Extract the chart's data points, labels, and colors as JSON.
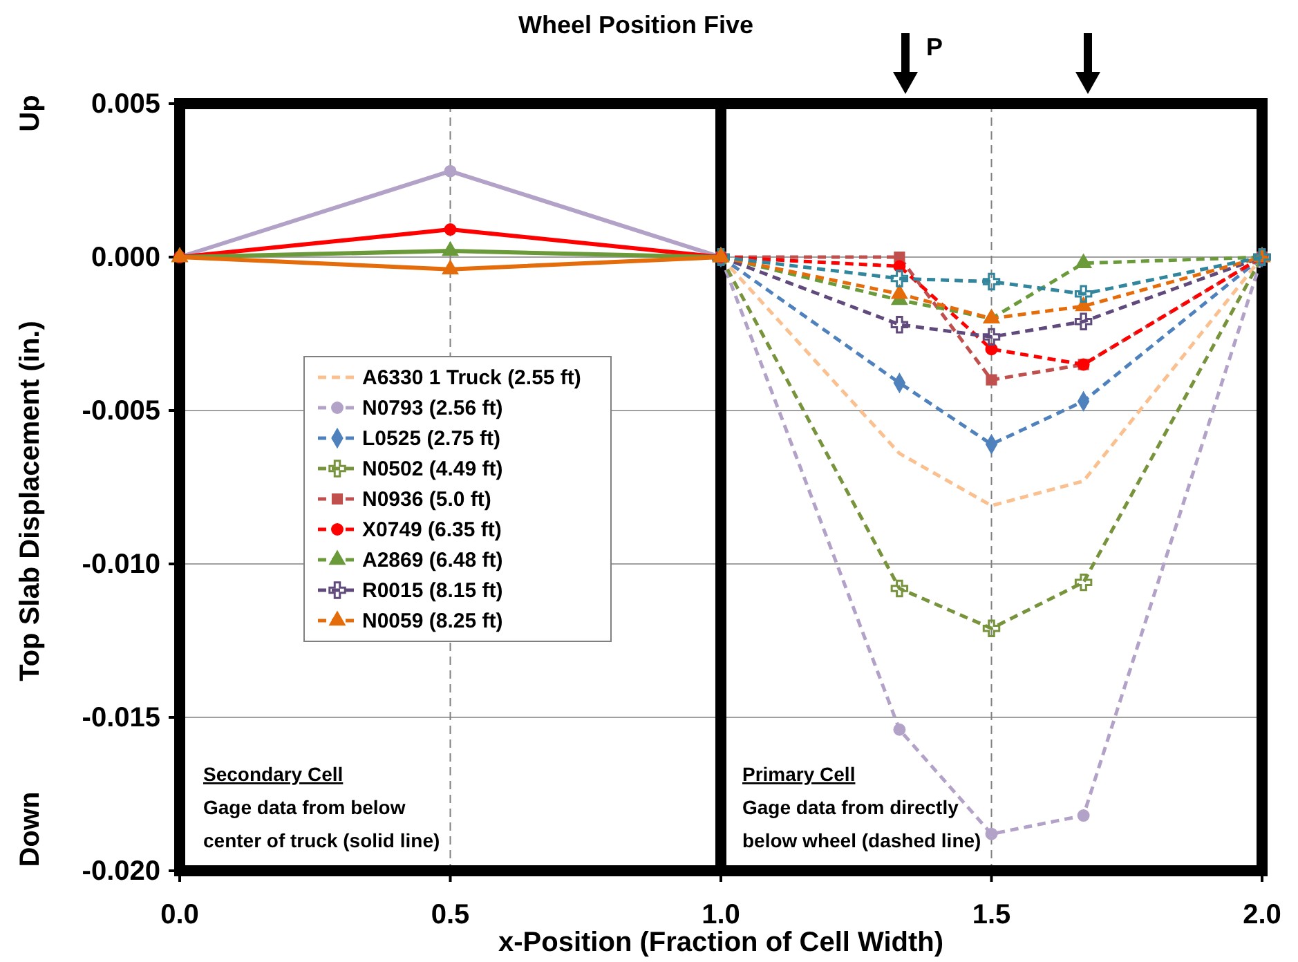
{
  "chart_data": {
    "type": "line",
    "xlabel": "x-Position (Fraction of Cell Width)",
    "ylabel": "Top Slab Displacement (in.)",
    "annotations": [
      "Wheel Position Five",
      "P",
      "Up",
      "Down",
      "Secondary Cell",
      "Gage data from below",
      "center of truck (solid line)",
      "Primary Cell",
      "Gage data from directly",
      "below wheel (dashed line)"
    ],
    "xlim": [
      0,
      2
    ],
    "xticks": [
      {
        "value": 0,
        "label": "0.0"
      },
      {
        "value": 0.5,
        "label": "0.5"
      },
      {
        "value": 1,
        "label": "1.0"
      },
      {
        "value": 1.5,
        "label": "1.5"
      },
      {
        "value": 2,
        "label": "2.0"
      }
    ],
    "ylim": [
      -0.02,
      0.005
    ],
    "yticks": [
      {
        "value": -0.02,
        "label": "-0.020"
      },
      {
        "value": -0.015,
        "label": "-0.015"
      },
      {
        "value": -0.01,
        "label": "-0.010"
      },
      {
        "value": -0.005,
        "label": "-0.005"
      },
      {
        "value": 0,
        "label": "0.000"
      },
      {
        "value": 0.005,
        "label": "0.005"
      }
    ],
    "grid": "y",
    "legend": "left",
    "ref_lines": [
      {
        "axis": "x",
        "value": 0.5,
        "label": null,
        "color": "#808080",
        "line_style": "dashed"
      },
      {
        "axis": "x",
        "value": 1.5,
        "label": null,
        "color": "#808080",
        "line_style": "dashed"
      },
      {
        "axis": "x",
        "value": 1,
        "label": null,
        "color": "#000000",
        "line_style": "solid"
      }
    ],
    "series": [
      {
        "name": "A6330 1 Truck (2.55 ft)",
        "color": "#fac090",
        "marker": "none",
        "line_style": "dashed",
        "x": [
          1,
          1.33,
          1.5,
          1.67,
          2
        ],
        "values": [
          0,
          -0.0064,
          -0.0081,
          -0.0073,
          0
        ]
      },
      {
        "name": "N0793 (2.56 ft)",
        "color": "#b3a2c7",
        "marker": "circle",
        "line_style": "dashed",
        "x": [
          1,
          1.33,
          1.5,
          1.67,
          2
        ],
        "values": [
          0,
          -0.0154,
          -0.0188,
          -0.0182,
          0
        ]
      },
      {
        "name": "L0525 (2.75 ft)",
        "color": "#4f81bd",
        "marker": "diamond",
        "line_style": "dashed",
        "x": [
          1,
          1.33,
          1.5,
          1.67,
          2
        ],
        "values": [
          0,
          -0.0041,
          -0.0061,
          -0.0047,
          0
        ]
      },
      {
        "name": "N0502 (4.49 ft)",
        "color": "#77933c",
        "marker": "cross",
        "line_style": "dashed",
        "x": [
          1,
          1.33,
          1.5,
          1.67,
          2
        ],
        "values": [
          0,
          -0.0108,
          -0.0121,
          -0.0106,
          0
        ]
      },
      {
        "name": "N0936 (5.0 ft)",
        "color": "#c0504d",
        "marker": "square",
        "line_style": "dashed",
        "x": [
          1,
          1.33,
          1.5,
          1.67,
          2
        ],
        "values": [
          0,
          0,
          -0.004,
          -0.0035,
          0
        ]
      },
      {
        "name": "X0749 (6.35 ft)",
        "color": "#ff0000",
        "marker": "circle",
        "line_style": "dashed",
        "x": [
          1,
          1.33,
          1.5,
          1.67,
          2
        ],
        "values": [
          0,
          -0.0003,
          -0.003,
          -0.0035,
          0
        ]
      },
      {
        "name": "A2869 (6.48 ft)",
        "color": "#6a9a3a",
        "marker": "triangle",
        "line_style": "dashed",
        "x": [
          1,
          1.33,
          1.5,
          1.67,
          2
        ],
        "values": [
          0,
          -0.0014,
          -0.002,
          -0.0002,
          0
        ]
      },
      {
        "name": "R0015 (8.15 ft)",
        "color": "#604a7b",
        "marker": "cross",
        "line_style": "dashed",
        "x": [
          1,
          1.33,
          1.5,
          1.67,
          2
        ],
        "values": [
          0,
          -0.0022,
          -0.0026,
          -0.0021,
          0
        ]
      },
      {
        "name": "N0059 (8.25 ft)",
        "color": "#e46c0a",
        "marker": "triangle",
        "line_style": "dashed",
        "x": [
          1,
          1.33,
          1.5,
          1.67,
          2
        ],
        "values": [
          0,
          -0.0012,
          -0.002,
          -0.0016,
          0
        ]
      },
      {
        "color": "#31859c",
        "marker": "cross",
        "line_style": "dashed",
        "x": [
          1,
          1.33,
          1.5,
          1.67,
          2
        ],
        "values": [
          0,
          -0.0007,
          -0.0008,
          -0.0012,
          0
        ]
      },
      {
        "color": "#b3a2c7",
        "marker": "circle",
        "line_style": "solid",
        "x": [
          0,
          0.5,
          1
        ],
        "values": [
          0,
          0.0028,
          0
        ]
      },
      {
        "color": "#ff0000",
        "marker": "circle",
        "line_style": "solid",
        "x": [
          0,
          0.5,
          1
        ],
        "values": [
          0,
          0.0009,
          0
        ]
      },
      {
        "color": "#6a9a3a",
        "marker": "triangle",
        "line_style": "solid",
        "x": [
          0,
          0.5,
          1
        ],
        "values": [
          0,
          0.0002,
          0
        ]
      },
      {
        "color": "#e46c0a",
        "marker": "triangle",
        "line_style": "solid",
        "x": [
          0,
          0.5,
          1
        ],
        "values": [
          0,
          -0.0004,
          0
        ]
      }
    ]
  }
}
